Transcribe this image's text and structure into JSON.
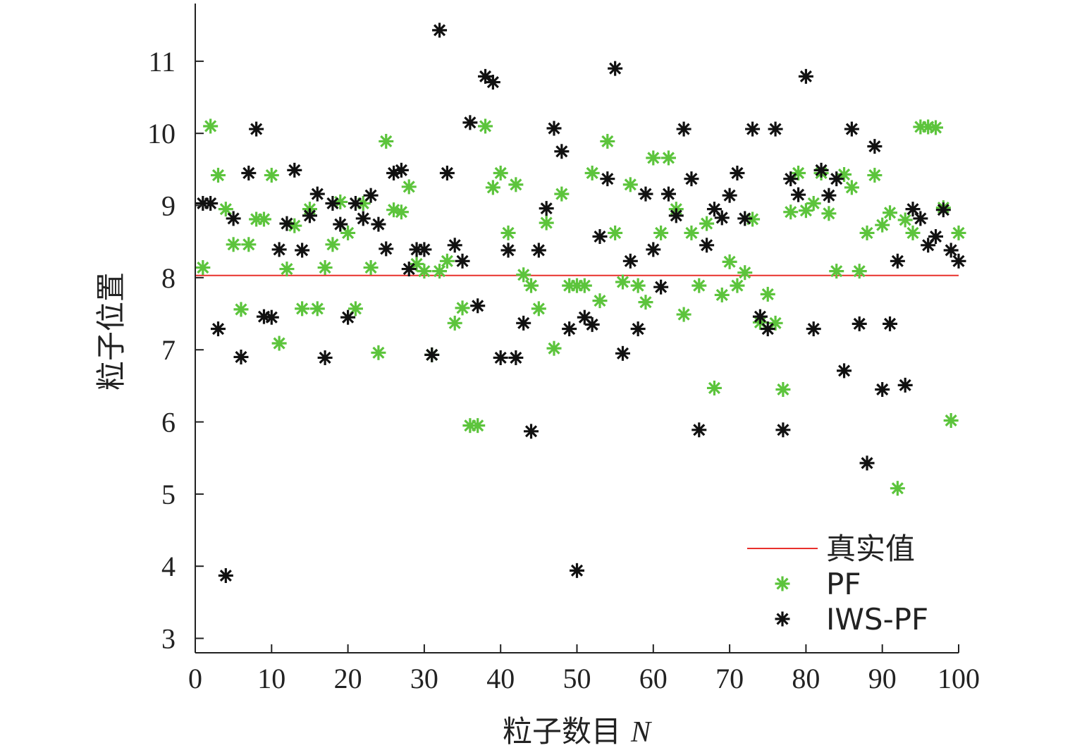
{
  "chart_data": {
    "type": "scatter",
    "xlabel_prefix": "粒子数目",
    "xlabel_var": "N",
    "ylabel": "粒子位置",
    "xlim": [
      0,
      100
    ],
    "ylim": [
      2.8,
      11.8
    ],
    "xticks": [
      0,
      10,
      20,
      30,
      40,
      50,
      60,
      70,
      80,
      90,
      100
    ],
    "yticks": [
      3,
      4,
      5,
      6,
      7,
      8,
      9,
      10,
      11
    ],
    "grid": false,
    "legend_position": "bottom-right",
    "reference_line": {
      "name": "真实值",
      "y": 8.03,
      "color": "#e8302c"
    },
    "series": [
      {
        "name": "PF",
        "color": "#5cc43c",
        "marker": "asterisk",
        "x": [
          1,
          2,
          3,
          4,
          5,
          6,
          7,
          8,
          9,
          10,
          11,
          12,
          13,
          14,
          15,
          16,
          17,
          18,
          19,
          20,
          21,
          22,
          23,
          24,
          25,
          26,
          27,
          28,
          29,
          30,
          31,
          32,
          33,
          34,
          35,
          36,
          37,
          38,
          39,
          40,
          41,
          42,
          43,
          44,
          45,
          46,
          47,
          48,
          49,
          50,
          51,
          52,
          53,
          54,
          55,
          56,
          57,
          58,
          59,
          60,
          61,
          62,
          63,
          64,
          65,
          66,
          67,
          68,
          69,
          70,
          71,
          72,
          73,
          74,
          75,
          76,
          77,
          78,
          79,
          80,
          81,
          82,
          83,
          84,
          85,
          86,
          87,
          88,
          89,
          90,
          91,
          92,
          93,
          94,
          95,
          96,
          97,
          98,
          99,
          100
        ],
        "y": [
          8.14,
          10.1,
          9.42,
          8.95,
          8.46,
          7.56,
          8.46,
          8.81,
          8.81,
          9.42,
          7.09,
          8.12,
          8.72,
          7.57,
          8.95,
          7.57,
          8.14,
          8.46,
          9.05,
          8.62,
          7.57,
          9.03,
          8.14,
          6.96,
          9.89,
          8.94,
          8.91,
          9.26,
          8.19,
          8.09,
          6.93,
          8.09,
          8.23,
          7.37,
          7.58,
          5.95,
          5.95,
          10.1,
          9.25,
          9.45,
          8.62,
          9.29,
          8.04,
          7.89,
          7.57,
          8.76,
          7.02,
          9.16,
          7.89,
          7.89,
          7.89,
          9.45,
          7.68,
          9.89,
          8.62,
          7.94,
          9.29,
          7.89,
          7.66,
          9.66,
          8.62,
          9.66,
          8.95,
          7.49,
          8.62,
          7.89,
          8.75,
          6.47,
          7.76,
          8.22,
          7.89,
          8.07,
          8.81,
          7.38,
          7.77,
          7.37,
          6.45,
          8.91,
          9.45,
          8.93,
          9.03,
          9.45,
          8.89,
          8.09,
          9.43,
          9.25,
          8.09,
          8.62,
          9.42,
          8.73,
          8.9,
          5.08,
          8.8,
          8.62,
          10.09,
          10.09,
          10.08,
          8.97,
          6.02,
          8.62
        ]
      },
      {
        "name": "IWS-PF",
        "color": "#111111",
        "marker": "asterisk",
        "x": [
          1,
          2,
          3,
          4,
          5,
          6,
          7,
          8,
          9,
          10,
          11,
          12,
          13,
          14,
          15,
          16,
          17,
          18,
          19,
          20,
          21,
          22,
          23,
          24,
          25,
          26,
          27,
          28,
          29,
          30,
          31,
          32,
          33,
          34,
          35,
          36,
          37,
          38,
          39,
          40,
          41,
          42,
          43,
          44,
          45,
          46,
          47,
          48,
          49,
          50,
          51,
          52,
          53,
          54,
          55,
          56,
          57,
          58,
          59,
          60,
          61,
          62,
          63,
          64,
          65,
          66,
          67,
          68,
          69,
          70,
          71,
          72,
          73,
          74,
          75,
          76,
          77,
          78,
          79,
          80,
          81,
          82,
          83,
          84,
          85,
          86,
          87,
          88,
          89,
          90,
          91,
          92,
          93,
          94,
          95,
          96,
          97,
          98,
          99,
          100
        ],
        "y": [
          9.03,
          9.03,
          7.29,
          3.87,
          8.82,
          6.9,
          9.45,
          10.06,
          7.46,
          7.45,
          8.39,
          8.75,
          9.49,
          8.38,
          8.86,
          9.16,
          6.89,
          9.03,
          8.74,
          7.45,
          9.03,
          8.82,
          9.14,
          8.74,
          8.4,
          9.45,
          9.49,
          8.12,
          8.39,
          8.39,
          6.93,
          11.43,
          9.45,
          8.45,
          8.23,
          10.15,
          7.61,
          10.79,
          10.71,
          6.89,
          8.38,
          6.89,
          7.37,
          5.87,
          8.38,
          8.96,
          10.07,
          9.75,
          7.29,
          3.94,
          7.45,
          7.35,
          8.57,
          9.37,
          10.9,
          6.95,
          8.23,
          7.29,
          9.16,
          8.39,
          7.87,
          9.16,
          8.86,
          10.06,
          9.37,
          5.89,
          8.45,
          8.95,
          8.83,
          9.14,
          9.45,
          8.82,
          10.06,
          7.46,
          7.29,
          10.06,
          5.89,
          9.37,
          9.15,
          10.79,
          7.29,
          9.49,
          9.14,
          9.37,
          6.71,
          10.06,
          7.36,
          5.43,
          9.82,
          6.45,
          7.36,
          8.23,
          6.51,
          8.95,
          8.82,
          8.45,
          8.57,
          8.94,
          8.38,
          8.23
        ]
      }
    ]
  }
}
